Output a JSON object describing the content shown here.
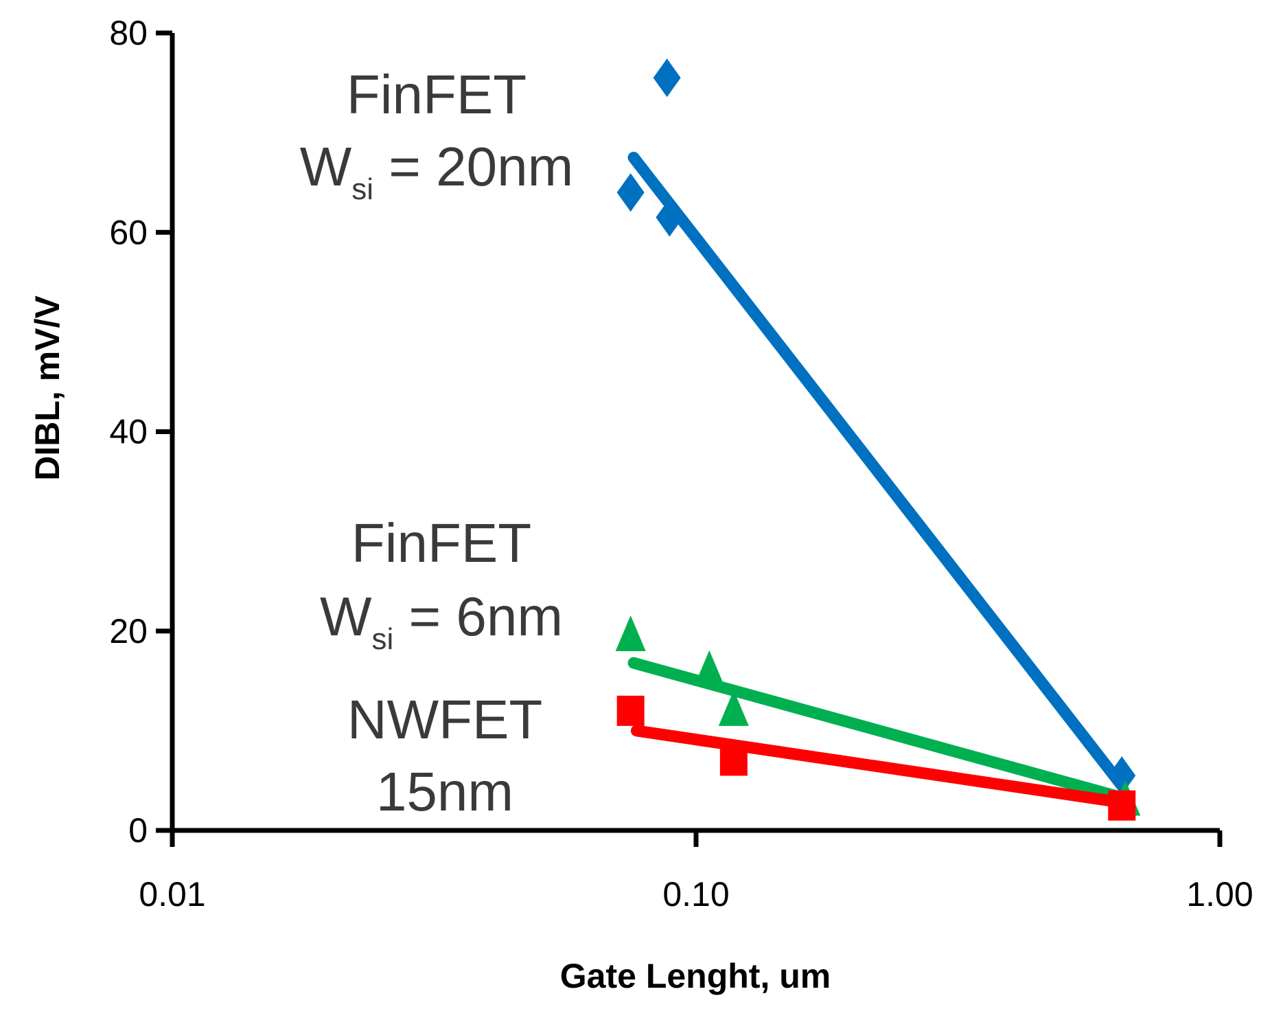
{
  "chart_data": {
    "type": "scatter",
    "title": "",
    "xlabel": "Gate Lenght, um",
    "ylabel": "DIBL, mV/V",
    "xscale": "log",
    "xlim": [
      0.01,
      1.0
    ],
    "ylim": [
      0,
      80
    ],
    "xticks": [
      0.01,
      0.1,
      1.0
    ],
    "xtick_labels": [
      "0.01",
      "0.10",
      "1.00"
    ],
    "yticks": [
      0,
      20,
      40,
      60,
      80
    ],
    "ytick_labels": [
      "0",
      "20",
      "40",
      "60",
      "80"
    ],
    "grid": false,
    "legend": "none",
    "series": [
      {
        "key": "finfet20",
        "color": "#0070c0",
        "marker": "diamond",
        "points": [
          [
            0.075,
            64
          ],
          [
            0.088,
            75.5
          ],
          [
            0.089,
            61.5
          ],
          [
            0.65,
            5.5
          ]
        ],
        "trend": [
          [
            0.076,
            67.5
          ],
          [
            0.65,
            4.5
          ]
        ]
      },
      {
        "key": "finfet6",
        "color": "#00b050",
        "marker": "triangle",
        "points": [
          [
            0.075,
            19.5
          ],
          [
            0.106,
            16
          ],
          [
            0.118,
            12
          ],
          [
            0.66,
            3
          ]
        ],
        "trend": [
          [
            0.076,
            16.8
          ],
          [
            0.66,
            3.2
          ]
        ]
      },
      {
        "key": "nwfet",
        "color": "#ff0000",
        "marker": "square",
        "points": [
          [
            0.075,
            12
          ],
          [
            0.118,
            7
          ],
          [
            0.65,
            2.5
          ]
        ],
        "trend": [
          [
            0.077,
            10
          ],
          [
            0.65,
            2.8
          ]
        ]
      }
    ],
    "annotations": [
      {
        "key": "finfet20",
        "line1": "FinFET",
        "w": "W",
        "sub": "si",
        "rest": " = 20nm"
      },
      {
        "key": "finfet6",
        "line1": "FinFET",
        "w": "W",
        "sub": "si",
        "rest": " = 6nm"
      },
      {
        "key": "nwfet",
        "line1": "NWFET",
        "line2": "15nm"
      }
    ]
  }
}
